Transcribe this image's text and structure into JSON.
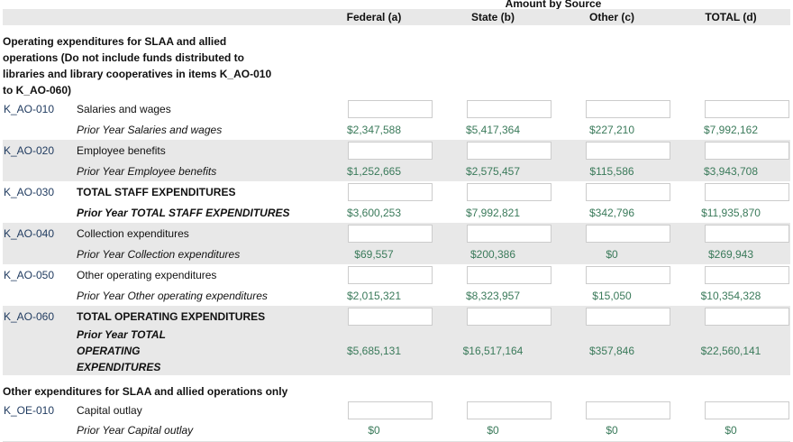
{
  "header": {
    "group": "Amount by Source",
    "columns": [
      "Federal (a)",
      "State (b)",
      "Other (c)",
      "TOTAL (d)"
    ]
  },
  "sections": [
    {
      "title": "Operating expenditures for SLAA and allied operations (Do not include funds distributed to libraries and library cooperatives in items K_AO-010 to K_AO-060)",
      "items": [
        {
          "code": "K_AO-010",
          "label": "Salaries and wages",
          "prior_label": "Prior Year Salaries and wages",
          "prior": [
            "$2,347,588",
            "$5,417,364",
            "$227,210",
            "$7,992,162"
          ]
        },
        {
          "code": "K_AO-020",
          "label": "Employee benefits",
          "prior_label": "Prior Year Employee benefits",
          "prior": [
            "$1,252,665",
            "$2,575,457",
            "$115,586",
            "$3,943,708"
          ]
        },
        {
          "code": "K_AO-030",
          "label": "TOTAL STAFF EXPENDITURES",
          "prior_label": "Prior Year TOTAL STAFF EXPENDITURES",
          "prior": [
            "$3,600,253",
            "$7,992,821",
            "$342,796",
            "$11,935,870"
          ]
        },
        {
          "code": "K_AO-040",
          "label": "Collection expenditures",
          "prior_label": "Prior Year Collection expenditures",
          "prior": [
            "$69,557",
            "$200,386",
            "$0",
            "$269,943"
          ]
        },
        {
          "code": "K_AO-050",
          "label": "Other operating expenditures",
          "prior_label": "Prior Year Other operating expenditures",
          "prior": [
            "$2,015,321",
            "$8,323,957",
            "$15,050",
            "$10,354,328"
          ]
        },
        {
          "code": "K_AO-060",
          "label": "TOTAL OPERATING EXPENDITURES",
          "prior_label": "Prior Year TOTAL OPERATING EXPENDITURES",
          "prior": [
            "$5,685,131",
            "$16,517,164",
            "$357,846",
            "$22,560,141"
          ]
        }
      ]
    },
    {
      "title": "Other expenditures for SLAA and allied operations only",
      "items": [
        {
          "code": "K_OE-010",
          "label": "Capital outlay",
          "prior_label": "Prior Year Capital outlay",
          "prior": [
            "$0",
            "$0",
            "$0",
            "$0"
          ]
        }
      ]
    }
  ]
}
